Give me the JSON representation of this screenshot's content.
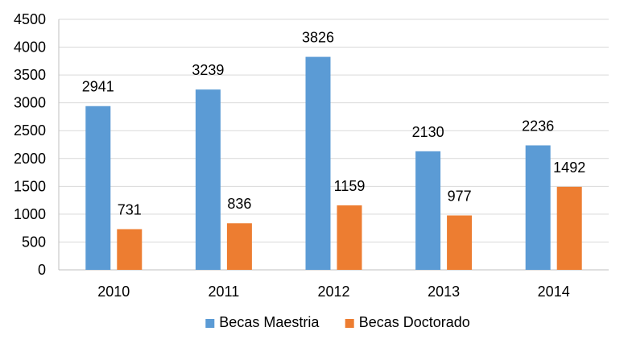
{
  "chart_data": {
    "type": "bar",
    "categories": [
      "2010",
      "2011",
      "2012",
      "2013",
      "2014"
    ],
    "series": [
      {
        "name": "Becas Maestria",
        "values": [
          2941,
          3239,
          3826,
          2130,
          2236
        ],
        "color": "#5B9BD5"
      },
      {
        "name": "Becas Doctorado",
        "values": [
          731,
          836,
          1159,
          977,
          1492
        ],
        "color": "#ED7D31"
      }
    ],
    "y_ticks": [
      0,
      500,
      1000,
      1500,
      2000,
      2500,
      3000,
      3500,
      4000,
      4500
    ],
    "ylim": [
      0,
      4500
    ],
    "grid": true,
    "legend_position": "bottom",
    "data_labels": true
  }
}
